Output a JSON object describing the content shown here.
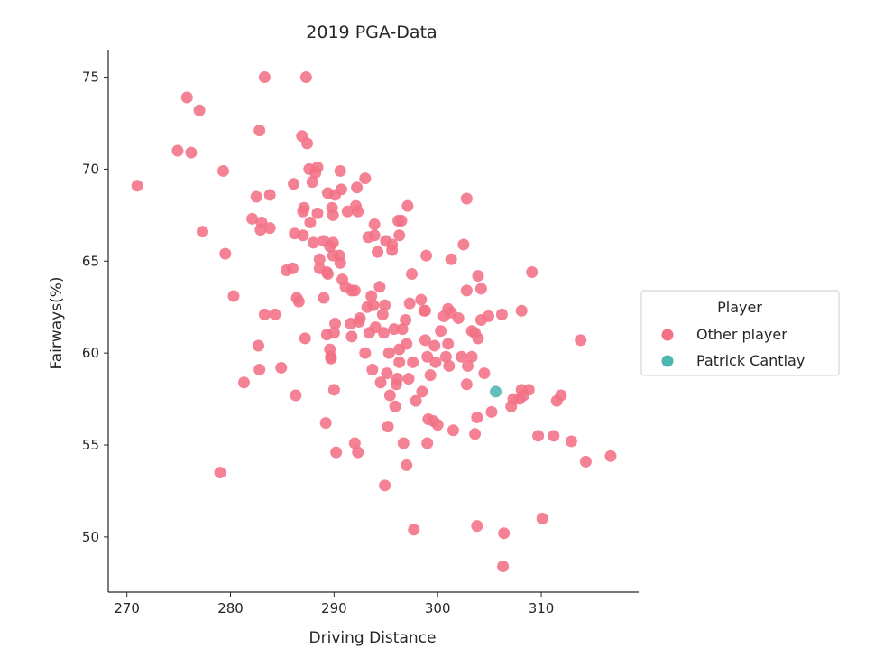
{
  "chart_data": {
    "type": "scatter",
    "title": "2019 PGA-Data",
    "xlabel": "Driving Distance",
    "ylabel": "Fairways(%)",
    "xlim": [
      268.2,
      319.4
    ],
    "ylim": [
      47.0,
      76.5
    ],
    "xticks": [
      270,
      280,
      290,
      300,
      310
    ],
    "yticks": [
      50,
      55,
      60,
      65,
      70,
      75
    ],
    "grid": false,
    "legend": {
      "title": "Player",
      "placement": "right",
      "entries": [
        "Other player",
        "Patrick Cantlay"
      ]
    },
    "colors": {
      "Other player": "#f37185",
      "Patrick Cantlay": "#4eb6b0"
    },
    "series": [
      {
        "name": "Other player",
        "points": [
          [
            271.0,
            69.1
          ],
          [
            274.9,
            71.0
          ],
          [
            275.8,
            73.9
          ],
          [
            276.2,
            70.9
          ],
          [
            277.0,
            73.2
          ],
          [
            277.3,
            66.6
          ],
          [
            279.0,
            53.5
          ],
          [
            279.3,
            69.9
          ],
          [
            279.5,
            65.4
          ],
          [
            280.3,
            63.1
          ],
          [
            281.3,
            58.4
          ],
          [
            282.1,
            67.3
          ],
          [
            282.5,
            68.5
          ],
          [
            282.7,
            60.4
          ],
          [
            282.8,
            72.1
          ],
          [
            282.8,
            59.1
          ],
          [
            282.9,
            66.7
          ],
          [
            283.0,
            67.1
          ],
          [
            283.3,
            75.0
          ],
          [
            283.3,
            62.1
          ],
          [
            283.8,
            66.8
          ],
          [
            283.8,
            68.6
          ],
          [
            284.3,
            62.1
          ],
          [
            284.9,
            59.2
          ],
          [
            285.4,
            64.5
          ],
          [
            286.0,
            64.6
          ],
          [
            286.1,
            69.2
          ],
          [
            286.2,
            66.5
          ],
          [
            286.3,
            57.7
          ],
          [
            286.4,
            63.0
          ],
          [
            286.6,
            62.8
          ],
          [
            286.9,
            71.8
          ],
          [
            287.0,
            67.7
          ],
          [
            287.0,
            66.4
          ],
          [
            287.1,
            67.9
          ],
          [
            287.2,
            60.8
          ],
          [
            287.3,
            75.0
          ],
          [
            287.4,
            71.4
          ],
          [
            287.6,
            70.0
          ],
          [
            287.7,
            67.1
          ],
          [
            287.9,
            69.3
          ],
          [
            288.0,
            66.0
          ],
          [
            288.2,
            69.8
          ],
          [
            288.4,
            70.1
          ],
          [
            288.4,
            67.6
          ],
          [
            288.6,
            64.6
          ],
          [
            288.6,
            65.1
          ],
          [
            289.0,
            63.0
          ],
          [
            289.0,
            66.1
          ],
          [
            289.2,
            56.2
          ],
          [
            289.3,
            64.4
          ],
          [
            289.3,
            61.0
          ],
          [
            289.4,
            68.7
          ],
          [
            289.4,
            64.3
          ],
          [
            289.6,
            65.8
          ],
          [
            289.6,
            60.2
          ],
          [
            289.7,
            59.8
          ],
          [
            289.7,
            59.7
          ],
          [
            289.8,
            67.9
          ],
          [
            289.9,
            67.5
          ],
          [
            289.9,
            66.0
          ],
          [
            289.9,
            65.3
          ],
          [
            290.0,
            61.1
          ],
          [
            290.0,
            58.0
          ],
          [
            290.1,
            68.6
          ],
          [
            290.1,
            61.6
          ],
          [
            290.2,
            54.6
          ],
          [
            290.5,
            65.3
          ],
          [
            290.6,
            64.9
          ],
          [
            290.6,
            69.9
          ],
          [
            290.7,
            68.9
          ],
          [
            290.8,
            64.0
          ],
          [
            291.1,
            63.6
          ],
          [
            291.3,
            67.7
          ],
          [
            291.6,
            61.6
          ],
          [
            291.7,
            63.4
          ],
          [
            291.7,
            60.9
          ],
          [
            292.0,
            55.1
          ],
          [
            292.0,
            63.4
          ],
          [
            292.1,
            68.0
          ],
          [
            292.2,
            69.0
          ],
          [
            292.3,
            67.7
          ],
          [
            292.3,
            54.6
          ],
          [
            292.4,
            61.7
          ],
          [
            292.5,
            61.9
          ],
          [
            293.0,
            69.5
          ],
          [
            293.0,
            60.0
          ],
          [
            293.2,
            62.5
          ],
          [
            293.3,
            66.3
          ],
          [
            293.4,
            61.1
          ],
          [
            293.6,
            63.1
          ],
          [
            293.7,
            59.1
          ],
          [
            293.8,
            62.6
          ],
          [
            293.9,
            67.0
          ],
          [
            293.9,
            66.4
          ],
          [
            294.0,
            61.4
          ],
          [
            294.2,
            65.5
          ],
          [
            294.4,
            63.6
          ],
          [
            294.5,
            58.4
          ],
          [
            294.7,
            62.1
          ],
          [
            294.8,
            61.1
          ],
          [
            294.9,
            62.6
          ],
          [
            294.9,
            52.8
          ],
          [
            295.0,
            66.1
          ],
          [
            295.1,
            58.9
          ],
          [
            295.2,
            56.0
          ],
          [
            295.3,
            60.0
          ],
          [
            295.4,
            57.7
          ],
          [
            295.6,
            65.9
          ],
          [
            295.6,
            65.6
          ],
          [
            295.8,
            61.3
          ],
          [
            295.9,
            57.1
          ],
          [
            296.0,
            58.3
          ],
          [
            296.1,
            58.6
          ],
          [
            296.2,
            67.2
          ],
          [
            296.3,
            66.4
          ],
          [
            296.3,
            60.2
          ],
          [
            296.3,
            59.5
          ],
          [
            296.5,
            67.2
          ],
          [
            296.6,
            61.3
          ],
          [
            296.7,
            55.1
          ],
          [
            296.9,
            61.8
          ],
          [
            297.0,
            53.9
          ],
          [
            297.0,
            60.5
          ],
          [
            297.1,
            68.0
          ],
          [
            297.2,
            58.6
          ],
          [
            297.3,
            62.7
          ],
          [
            297.5,
            64.3
          ],
          [
            297.6,
            59.5
          ],
          [
            297.7,
            50.4
          ],
          [
            297.9,
            57.4
          ],
          [
            298.4,
            62.9
          ],
          [
            298.5,
            57.9
          ],
          [
            298.7,
            62.3
          ],
          [
            298.8,
            62.3
          ],
          [
            298.8,
            60.7
          ],
          [
            298.9,
            65.3
          ],
          [
            299.0,
            55.1
          ],
          [
            299.0,
            59.8
          ],
          [
            299.1,
            56.4
          ],
          [
            299.3,
            58.8
          ],
          [
            299.6,
            56.3
          ],
          [
            299.7,
            60.4
          ],
          [
            299.8,
            59.5
          ],
          [
            300.0,
            56.1
          ],
          [
            300.3,
            61.2
          ],
          [
            300.6,
            62.0
          ],
          [
            300.8,
            59.8
          ],
          [
            301.0,
            62.4
          ],
          [
            301.0,
            60.5
          ],
          [
            301.1,
            59.3
          ],
          [
            301.3,
            62.2
          ],
          [
            301.3,
            65.1
          ],
          [
            301.5,
            55.8
          ],
          [
            302.0,
            61.9
          ],
          [
            302.3,
            59.8
          ],
          [
            302.5,
            65.9
          ],
          [
            302.8,
            68.4
          ],
          [
            302.8,
            63.4
          ],
          [
            302.8,
            58.3
          ],
          [
            302.9,
            59.3
          ],
          [
            303.3,
            61.2
          ],
          [
            303.3,
            59.8
          ],
          [
            303.6,
            61.1
          ],
          [
            303.6,
            55.6
          ],
          [
            303.8,
            50.6
          ],
          [
            303.8,
            56.5
          ],
          [
            303.9,
            64.2
          ],
          [
            303.9,
            60.8
          ],
          [
            304.2,
            63.5
          ],
          [
            304.2,
            61.8
          ],
          [
            304.5,
            58.9
          ],
          [
            304.9,
            62.0
          ],
          [
            305.2,
            56.8
          ],
          [
            306.2,
            62.1
          ],
          [
            306.3,
            48.4
          ],
          [
            306.4,
            50.2
          ],
          [
            307.1,
            57.1
          ],
          [
            307.3,
            57.5
          ],
          [
            307.9,
            57.5
          ],
          [
            308.1,
            58.0
          ],
          [
            308.1,
            62.3
          ],
          [
            308.3,
            57.7
          ],
          [
            308.8,
            58.0
          ],
          [
            309.1,
            64.4
          ],
          [
            309.7,
            55.5
          ],
          [
            310.1,
            51.0
          ],
          [
            311.2,
            55.5
          ],
          [
            311.5,
            57.4
          ],
          [
            311.9,
            57.7
          ],
          [
            312.9,
            55.2
          ],
          [
            313.8,
            60.7
          ],
          [
            314.3,
            54.1
          ],
          [
            316.7,
            54.4
          ]
        ]
      },
      {
        "name": "Patrick Cantlay",
        "points": [
          [
            305.6,
            57.9
          ]
        ]
      }
    ]
  }
}
